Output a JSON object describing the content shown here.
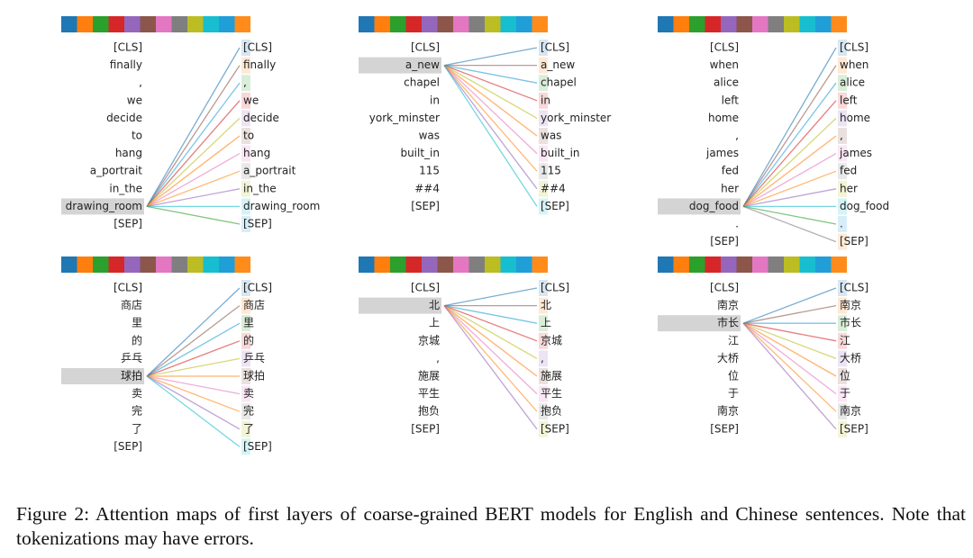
{
  "panels": [
    {
      "tokens": [
        "[CLS]",
        "finally",
        ",",
        "we",
        "decide",
        "to",
        "hang",
        "a_portrait",
        "in_the",
        "drawing_room",
        "[SEP]"
      ],
      "selected": 9
    },
    {
      "tokens": [
        "[CLS]",
        "a_new",
        "chapel",
        "in",
        "york_minster",
        "was",
        "built_in",
        "115",
        "##4",
        "[SEP]"
      ],
      "selected": 1
    },
    {
      "tokens": [
        "[CLS]",
        "when",
        "alice",
        "left",
        "home",
        ",",
        "james",
        "fed",
        "her",
        "dog_food",
        ".",
        "[SEP]"
      ],
      "selected": 9
    },
    {
      "tokens": [
        "[CLS]",
        "商店",
        "里",
        "的",
        "乒乓",
        "球拍",
        "卖",
        "完",
        "了",
        "[SEP]"
      ],
      "selected": 5
    },
    {
      "tokens": [
        "[CLS]",
        "北",
        "上",
        "京城",
        ",",
        "施展",
        "平生",
        "抱负",
        "[SEP]"
      ],
      "selected": 1
    },
    {
      "tokens": [
        "[CLS]",
        "南京",
        "市长",
        "江",
        "大桥",
        "位",
        "于",
        "南京",
        "[SEP]"
      ],
      "selected": 2
    }
  ],
  "caption": "Figure 2: Attention maps of first layers of coarse-grained BERT models for English and Chinese sentences. Note that tokenizations may have errors."
}
